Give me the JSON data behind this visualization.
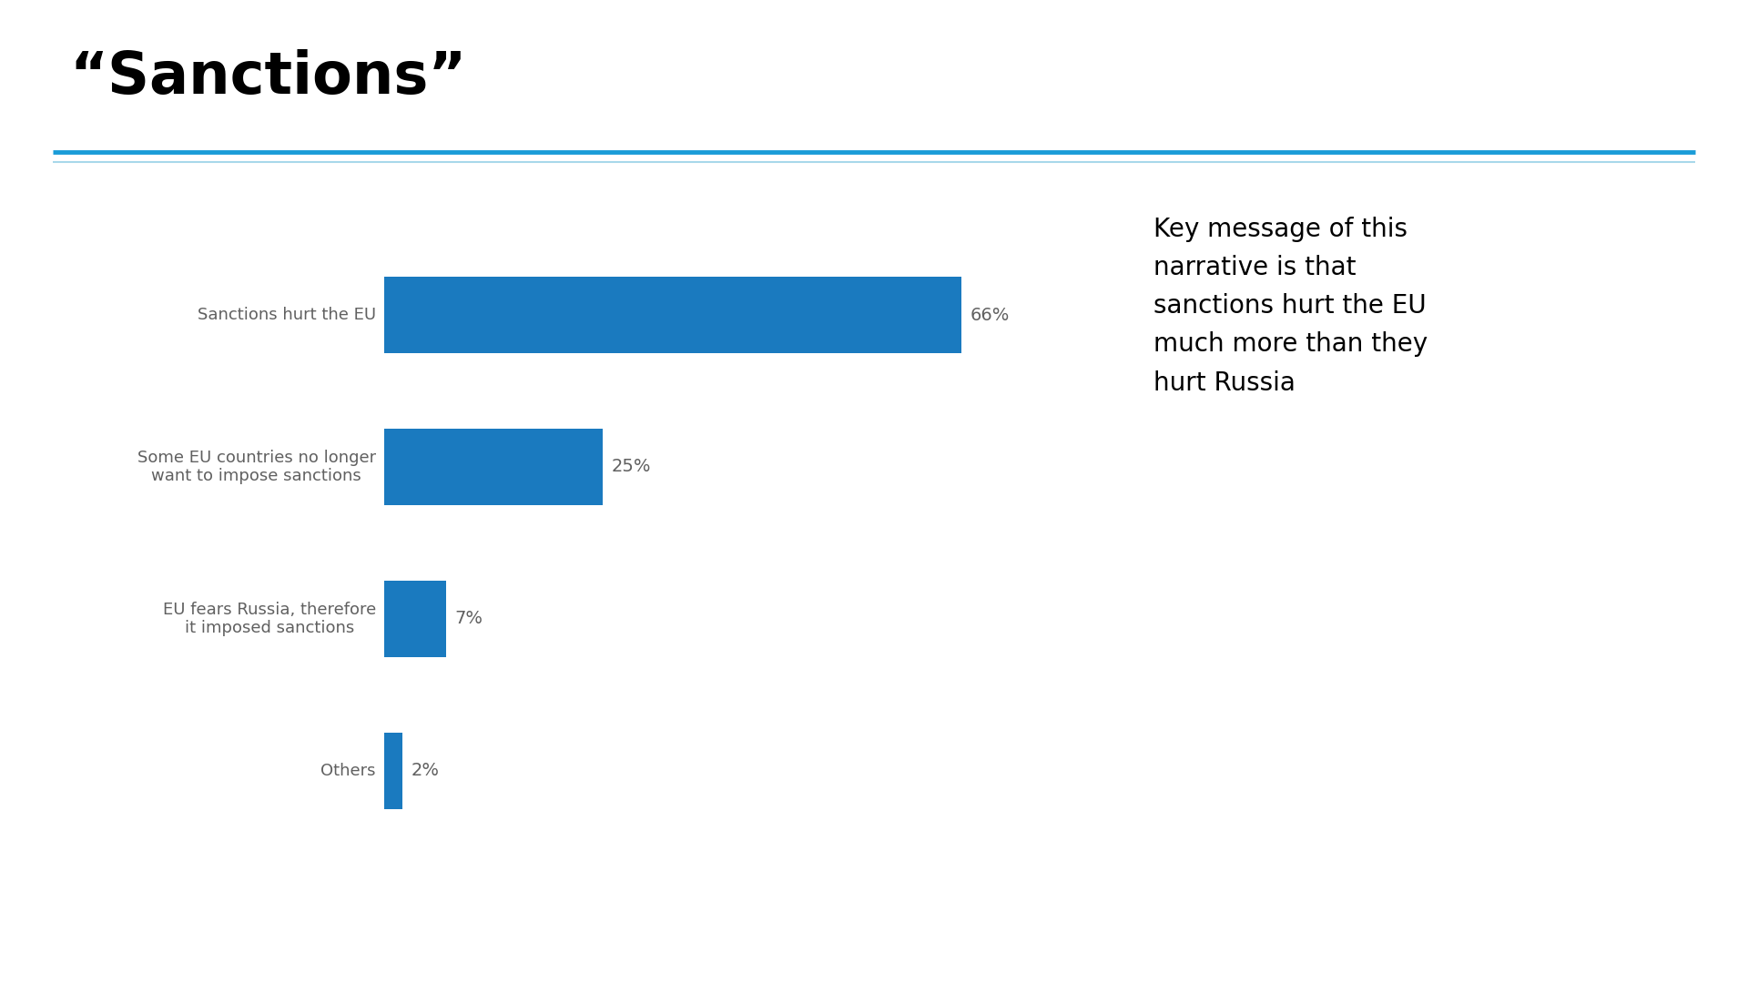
{
  "title": "“Sanctions”",
  "title_fontsize": 46,
  "title_fontweight": "bold",
  "title_color": "#000000",
  "background_color": "#ffffff",
  "bar_color": "#1a7abf",
  "categories": [
    "Sanctions hurt the EU",
    "Some EU countries no longer\nwant to impose sanctions",
    "EU fears Russia, therefore\nit imposed sanctions",
    "Others"
  ],
  "values": [
    66,
    25,
    7,
    2
  ],
  "label_fontsize": 13,
  "label_color": "#606060",
  "value_fontsize": 14,
  "value_color": "#606060",
  "separator_line_color1": "#1a9cd8",
  "separator_line_color2": "#a8d8ea",
  "annotation_text": "Key message of this\nnarrative is that\nsanctions hurt the EU\nmuch more than they\nhurt Russia",
  "annotation_fontsize": 20,
  "annotation_color": "#000000",
  "xlim": [
    0,
    80
  ]
}
